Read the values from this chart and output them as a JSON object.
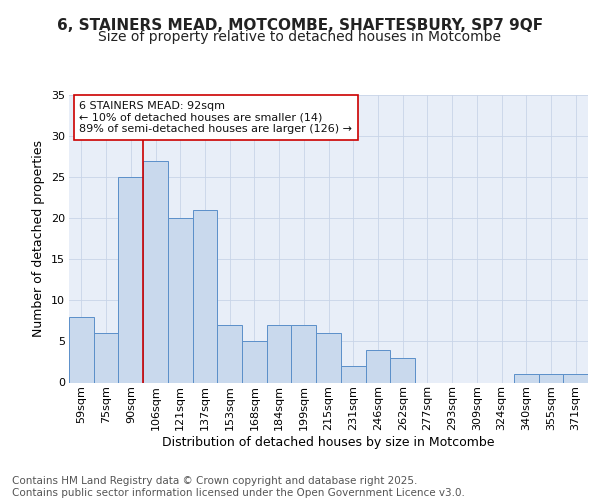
{
  "title_line1": "6, STAINERS MEAD, MOTCOMBE, SHAFTESBURY, SP7 9QF",
  "title_line2": "Size of property relative to detached houses in Motcombe",
  "xlabel": "Distribution of detached houses by size in Motcombe",
  "ylabel": "Number of detached properties",
  "bin_labels": [
    "59sqm",
    "75sqm",
    "90sqm",
    "106sqm",
    "121sqm",
    "137sqm",
    "153sqm",
    "168sqm",
    "184sqm",
    "199sqm",
    "215sqm",
    "231sqm",
    "246sqm",
    "262sqm",
    "277sqm",
    "293sqm",
    "309sqm",
    "324sqm",
    "340sqm",
    "355sqm",
    "371sqm"
  ],
  "bar_values": [
    8,
    6,
    25,
    27,
    20,
    21,
    7,
    5,
    7,
    7,
    6,
    2,
    4,
    3,
    0,
    0,
    0,
    0,
    1,
    1,
    1
  ],
  "bar_color": "#c9d9ed",
  "bar_edge_color": "#5b8fc9",
  "grid_color": "#c8d4e8",
  "plot_bg_color": "#e8eef8",
  "fig_bg_color": "#ffffff",
  "vline_color": "#cc0000",
  "annotation_text": "6 STAINERS MEAD: 92sqm\n← 10% of detached houses are smaller (14)\n89% of semi-detached houses are larger (126) →",
  "annotation_box_color": "#ffffff",
  "annotation_box_edge": "#cc0000",
  "ylim": [
    0,
    35
  ],
  "yticks": [
    0,
    5,
    10,
    15,
    20,
    25,
    30,
    35
  ],
  "footer_text": "Contains HM Land Registry data © Crown copyright and database right 2025.\nContains public sector information licensed under the Open Government Licence v3.0.",
  "title_fontsize": 11,
  "subtitle_fontsize": 10,
  "axis_label_fontsize": 9,
  "tick_fontsize": 8,
  "annotation_fontsize": 8,
  "footer_fontsize": 7.5
}
